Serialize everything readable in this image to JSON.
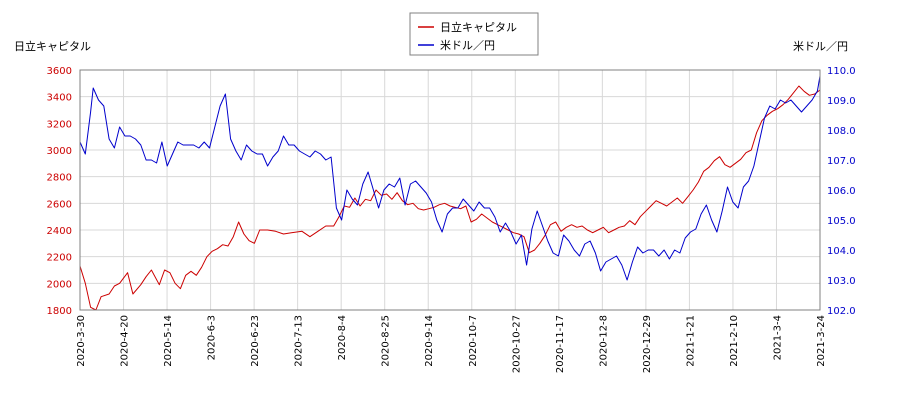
{
  "chart_data": {
    "type": "line",
    "left_axis_title": "日立キャピタル",
    "right_axis_title": "米ドル／円",
    "legend_position": "top-center",
    "grid": true,
    "x_tick_labels": [
      "2020-3-30",
      "2020-4-20",
      "2020-5-14",
      "2020-6-3",
      "2020-6-23",
      "2020-7-13",
      "2020-8-4",
      "2020-8-25",
      "2020-9-14",
      "2020-10-7",
      "2020-10-27",
      "2020-11-17",
      "2020-12-8",
      "2020-12-29",
      "2021-1-21",
      "2021-2-10",
      "2021-3-4",
      "2021-3-24"
    ],
    "y_left": {
      "min": 1800,
      "max": 3600,
      "ticks": [
        "1800",
        "2000",
        "2200",
        "2400",
        "2600",
        "2800",
        "3000",
        "3200",
        "3400",
        "3600"
      ]
    },
    "y_right": {
      "min": 102.0,
      "max": 110.0,
      "ticks": [
        "102.0",
        "103.0",
        "104.0",
        "105.0",
        "106.0",
        "107.0",
        "108.0",
        "109.0",
        "110.0"
      ]
    },
    "series": [
      {
        "name": "日立キャピタル",
        "axis": "left",
        "color": "#cc0000",
        "values": [
          [
            0,
            2130
          ],
          [
            2,
            2000
          ],
          [
            4,
            1820
          ],
          [
            6,
            1800
          ],
          [
            8,
            1900
          ],
          [
            11,
            1920
          ],
          [
            13,
            1980
          ],
          [
            15,
            2000
          ],
          [
            18,
            2080
          ],
          [
            20,
            1920
          ],
          [
            23,
            1990
          ],
          [
            25,
            2050
          ],
          [
            27,
            2100
          ],
          [
            30,
            1990
          ],
          [
            32,
            2100
          ],
          [
            34,
            2080
          ],
          [
            36,
            2000
          ],
          [
            38,
            1960
          ],
          [
            40,
            2060
          ],
          [
            42,
            2090
          ],
          [
            44,
            2060
          ],
          [
            46,
            2120
          ],
          [
            48,
            2200
          ],
          [
            50,
            2240
          ],
          [
            52,
            2260
          ],
          [
            54,
            2290
          ],
          [
            56,
            2280
          ],
          [
            58,
            2350
          ],
          [
            60,
            2460
          ],
          [
            62,
            2370
          ],
          [
            64,
            2320
          ],
          [
            66,
            2300
          ],
          [
            68,
            2400
          ],
          [
            71,
            2400
          ],
          [
            74,
            2390
          ],
          [
            77,
            2370
          ],
          [
            80,
            2380
          ],
          [
            84,
            2390
          ],
          [
            87,
            2350
          ],
          [
            90,
            2390
          ],
          [
            93,
            2430
          ],
          [
            96,
            2430
          ],
          [
            98,
            2500
          ],
          [
            100,
            2580
          ],
          [
            102,
            2570
          ],
          [
            104,
            2640
          ],
          [
            106,
            2580
          ],
          [
            108,
            2630
          ],
          [
            110,
            2620
          ],
          [
            112,
            2700
          ],
          [
            114,
            2660
          ],
          [
            116,
            2670
          ],
          [
            118,
            2630
          ],
          [
            120,
            2680
          ],
          [
            122,
            2620
          ],
          [
            124,
            2590
          ],
          [
            126,
            2600
          ],
          [
            128,
            2560
          ],
          [
            130,
            2550
          ],
          [
            132,
            2560
          ],
          [
            134,
            2570
          ],
          [
            136,
            2590
          ],
          [
            138,
            2600
          ],
          [
            140,
            2580
          ],
          [
            142,
            2570
          ],
          [
            144,
            2560
          ],
          [
            146,
            2580
          ],
          [
            148,
            2460
          ],
          [
            150,
            2480
          ],
          [
            152,
            2520
          ],
          [
            154,
            2490
          ],
          [
            156,
            2460
          ],
          [
            158,
            2440
          ],
          [
            160,
            2420
          ],
          [
            162,
            2400
          ],
          [
            164,
            2380
          ],
          [
            166,
            2370
          ],
          [
            168,
            2350
          ],
          [
            170,
            2230
          ],
          [
            172,
            2250
          ],
          [
            174,
            2300
          ],
          [
            176,
            2360
          ],
          [
            178,
            2440
          ],
          [
            180,
            2460
          ],
          [
            182,
            2390
          ],
          [
            184,
            2420
          ],
          [
            186,
            2440
          ],
          [
            188,
            2420
          ],
          [
            190,
            2430
          ],
          [
            192,
            2400
          ],
          [
            194,
            2380
          ],
          [
            196,
            2400
          ],
          [
            198,
            2420
          ],
          [
            200,
            2380
          ],
          [
            202,
            2400
          ],
          [
            204,
            2420
          ],
          [
            206,
            2430
          ],
          [
            208,
            2470
          ],
          [
            210,
            2440
          ],
          [
            212,
            2500
          ],
          [
            214,
            2540
          ],
          [
            216,
            2580
          ],
          [
            218,
            2620
          ],
          [
            220,
            2600
          ],
          [
            222,
            2580
          ],
          [
            224,
            2610
          ],
          [
            226,
            2640
          ],
          [
            228,
            2600
          ],
          [
            230,
            2650
          ],
          [
            232,
            2700
          ],
          [
            234,
            2760
          ],
          [
            236,
            2840
          ],
          [
            238,
            2870
          ],
          [
            240,
            2920
          ],
          [
            242,
            2950
          ],
          [
            244,
            2890
          ],
          [
            246,
            2870
          ],
          [
            248,
            2900
          ],
          [
            250,
            2930
          ],
          [
            252,
            2980
          ],
          [
            254,
            3000
          ],
          [
            256,
            3130
          ],
          [
            258,
            3220
          ],
          [
            260,
            3260
          ],
          [
            262,
            3290
          ],
          [
            264,
            3310
          ],
          [
            266,
            3340
          ],
          [
            268,
            3380
          ],
          [
            270,
            3430
          ],
          [
            272,
            3480
          ],
          [
            274,
            3440
          ],
          [
            276,
            3410
          ],
          [
            278,
            3420
          ],
          [
            280,
            3450
          ]
        ]
      },
      {
        "name": "米ドル／円",
        "axis": "right",
        "color": "#0000cc",
        "values": [
          [
            0,
            107.6
          ],
          [
            2,
            107.2
          ],
          [
            4,
            108.6
          ],
          [
            5,
            109.4
          ],
          [
            7,
            109.0
          ],
          [
            9,
            108.8
          ],
          [
            11,
            107.7
          ],
          [
            13,
            107.4
          ],
          [
            15,
            108.1
          ],
          [
            17,
            107.8
          ],
          [
            19,
            107.8
          ],
          [
            21,
            107.7
          ],
          [
            23,
            107.5
          ],
          [
            25,
            107.0
          ],
          [
            27,
            107.0
          ],
          [
            29,
            106.9
          ],
          [
            31,
            107.6
          ],
          [
            33,
            106.8
          ],
          [
            35,
            107.2
          ],
          [
            37,
            107.6
          ],
          [
            39,
            107.5
          ],
          [
            41,
            107.5
          ],
          [
            43,
            107.5
          ],
          [
            45,
            107.4
          ],
          [
            47,
            107.6
          ],
          [
            49,
            107.4
          ],
          [
            51,
            108.1
          ],
          [
            53,
            108.8
          ],
          [
            55,
            109.2
          ],
          [
            57,
            107.7
          ],
          [
            59,
            107.3
          ],
          [
            61,
            107.0
          ],
          [
            63,
            107.5
          ],
          [
            65,
            107.3
          ],
          [
            67,
            107.2
          ],
          [
            69,
            107.2
          ],
          [
            71,
            106.8
          ],
          [
            73,
            107.1
          ],
          [
            75,
            107.3
          ],
          [
            77,
            107.8
          ],
          [
            79,
            107.5
          ],
          [
            81,
            107.5
          ],
          [
            83,
            107.3
          ],
          [
            85,
            107.2
          ],
          [
            87,
            107.1
          ],
          [
            89,
            107.3
          ],
          [
            91,
            107.2
          ],
          [
            93,
            107.0
          ],
          [
            95,
            107.1
          ],
          [
            97,
            105.4
          ],
          [
            99,
            105.0
          ],
          [
            101,
            106.0
          ],
          [
            103,
            105.7
          ],
          [
            105,
            105.5
          ],
          [
            107,
            106.2
          ],
          [
            109,
            106.6
          ],
          [
            111,
            106.0
          ],
          [
            113,
            105.4
          ],
          [
            115,
            106.0
          ],
          [
            117,
            106.2
          ],
          [
            119,
            106.1
          ],
          [
            121,
            106.4
          ],
          [
            123,
            105.5
          ],
          [
            125,
            106.2
          ],
          [
            127,
            106.3
          ],
          [
            129,
            106.1
          ],
          [
            131,
            105.9
          ],
          [
            133,
            105.6
          ],
          [
            135,
            105.0
          ],
          [
            137,
            104.6
          ],
          [
            139,
            105.2
          ],
          [
            141,
            105.4
          ],
          [
            143,
            105.4
          ],
          [
            145,
            105.7
          ],
          [
            147,
            105.5
          ],
          [
            149,
            105.3
          ],
          [
            151,
            105.6
          ],
          [
            153,
            105.4
          ],
          [
            155,
            105.4
          ],
          [
            157,
            105.1
          ],
          [
            159,
            104.6
          ],
          [
            161,
            104.9
          ],
          [
            163,
            104.6
          ],
          [
            165,
            104.2
          ],
          [
            167,
            104.5
          ],
          [
            169,
            103.5
          ],
          [
            171,
            104.7
          ],
          [
            173,
            105.3
          ],
          [
            175,
            104.8
          ],
          [
            177,
            104.3
          ],
          [
            179,
            103.9
          ],
          [
            181,
            103.8
          ],
          [
            183,
            104.5
          ],
          [
            185,
            104.3
          ],
          [
            187,
            104.0
          ],
          [
            189,
            103.8
          ],
          [
            191,
            104.2
          ],
          [
            193,
            104.3
          ],
          [
            195,
            103.9
          ],
          [
            197,
            103.3
          ],
          [
            199,
            103.6
          ],
          [
            201,
            103.7
          ],
          [
            203,
            103.8
          ],
          [
            205,
            103.5
          ],
          [
            207,
            103.0
          ],
          [
            209,
            103.6
          ],
          [
            211,
            104.1
          ],
          [
            213,
            103.9
          ],
          [
            215,
            104.0
          ],
          [
            217,
            104.0
          ],
          [
            219,
            103.8
          ],
          [
            221,
            104.0
          ],
          [
            223,
            103.7
          ],
          [
            225,
            104.0
          ],
          [
            227,
            103.9
          ],
          [
            229,
            104.4
          ],
          [
            231,
            104.6
          ],
          [
            233,
            104.7
          ],
          [
            235,
            105.2
          ],
          [
            237,
            105.5
          ],
          [
            239,
            105.0
          ],
          [
            241,
            104.6
          ],
          [
            243,
            105.3
          ],
          [
            245,
            106.1
          ],
          [
            247,
            105.6
          ],
          [
            249,
            105.4
          ],
          [
            251,
            106.1
          ],
          [
            253,
            106.3
          ],
          [
            255,
            106.8
          ],
          [
            257,
            107.6
          ],
          [
            259,
            108.4
          ],
          [
            261,
            108.8
          ],
          [
            263,
            108.7
          ],
          [
            265,
            109.0
          ],
          [
            267,
            108.9
          ],
          [
            269,
            109.0
          ],
          [
            271,
            108.8
          ],
          [
            273,
            108.6
          ],
          [
            275,
            108.8
          ],
          [
            277,
            109.0
          ],
          [
            279,
            109.3
          ],
          [
            280,
            109.8
          ]
        ]
      }
    ]
  }
}
